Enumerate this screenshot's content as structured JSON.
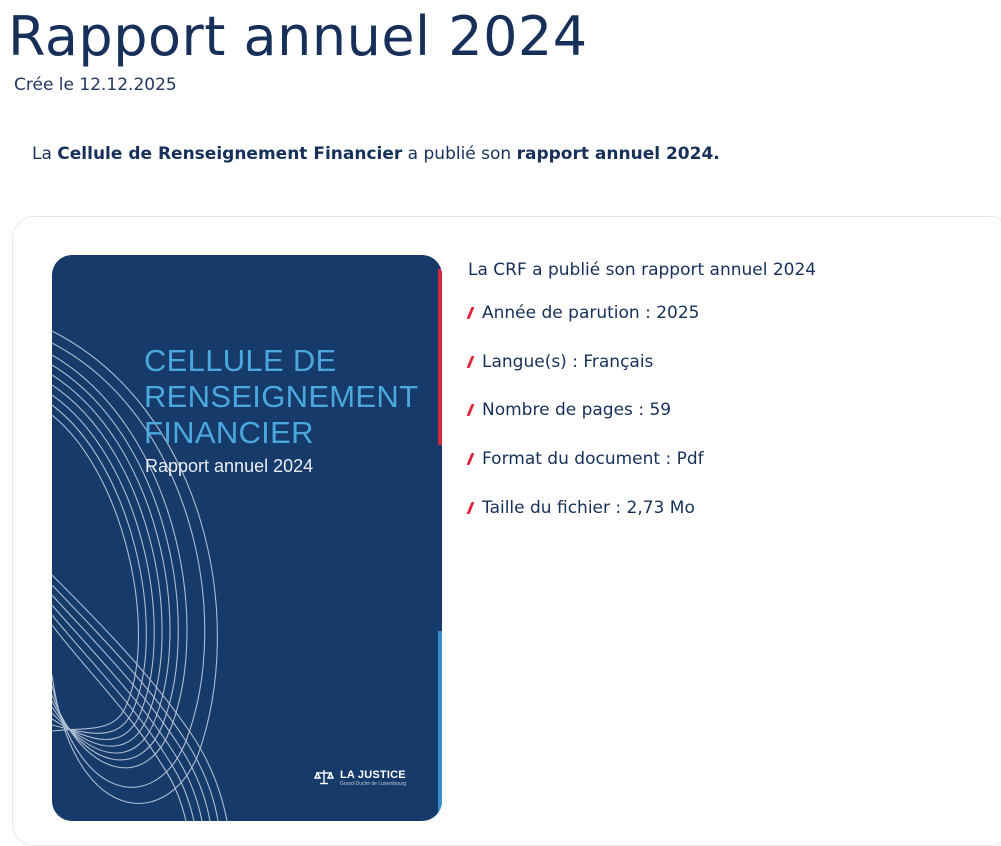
{
  "page": {
    "title": "Rapport annuel 2024",
    "created": "Crée le 12.12.2025"
  },
  "intro": {
    "prefix": "La ",
    "organisation": "Cellule de Renseignement Financier",
    "middle": " a publié son ",
    "report": "rapport annuel 2024."
  },
  "publication": {
    "cover": {
      "title": "CELLULE DE\nRENSEIGNEMENT\nFINANCIER",
      "subtitle": "Rapport annuel 2024",
      "logo_text": "LA JUSTICE",
      "logo_subtext": "Grand-Duché de Luxembourg",
      "background_color": "#163a69",
      "title_color": "#4aa8df",
      "accent_red": "#d4283a",
      "accent_blue": "#3a8fd0"
    },
    "heading": "La CRF a publié son rapport annuel 2024",
    "bullet_color": "#e0213a",
    "details": [
      {
        "label": "Année de parution : 2025"
      },
      {
        "label": "Langue(s) : Français"
      },
      {
        "label": "Nombre de pages : 59"
      },
      {
        "label": "Format du document : Pdf"
      },
      {
        "label": "Taille du fichier : 2,73 Mo"
      }
    ]
  }
}
